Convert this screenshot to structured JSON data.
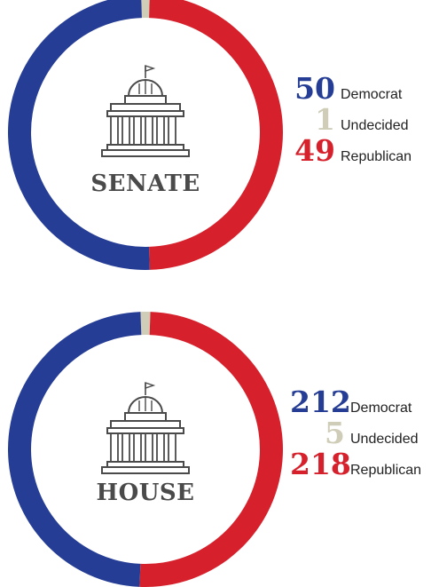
{
  "colors": {
    "Democrat": "#253d95",
    "Undecided": "#cfcdb8",
    "Republican": "#d6202b",
    "icon": "#4a4a4a"
  },
  "chart_data": [
    {
      "type": "pie",
      "label": "SENATE",
      "series": [
        {
          "name": "Democrat",
          "value": 50
        },
        {
          "name": "Undecided",
          "value": 1
        },
        {
          "name": "Republican",
          "value": 49
        }
      ]
    },
    {
      "type": "pie",
      "label": "HOUSE",
      "series": [
        {
          "name": "Democrat",
          "value": 212
        },
        {
          "name": "Undecided",
          "value": 5
        },
        {
          "name": "Republican",
          "value": 218
        }
      ]
    }
  ]
}
